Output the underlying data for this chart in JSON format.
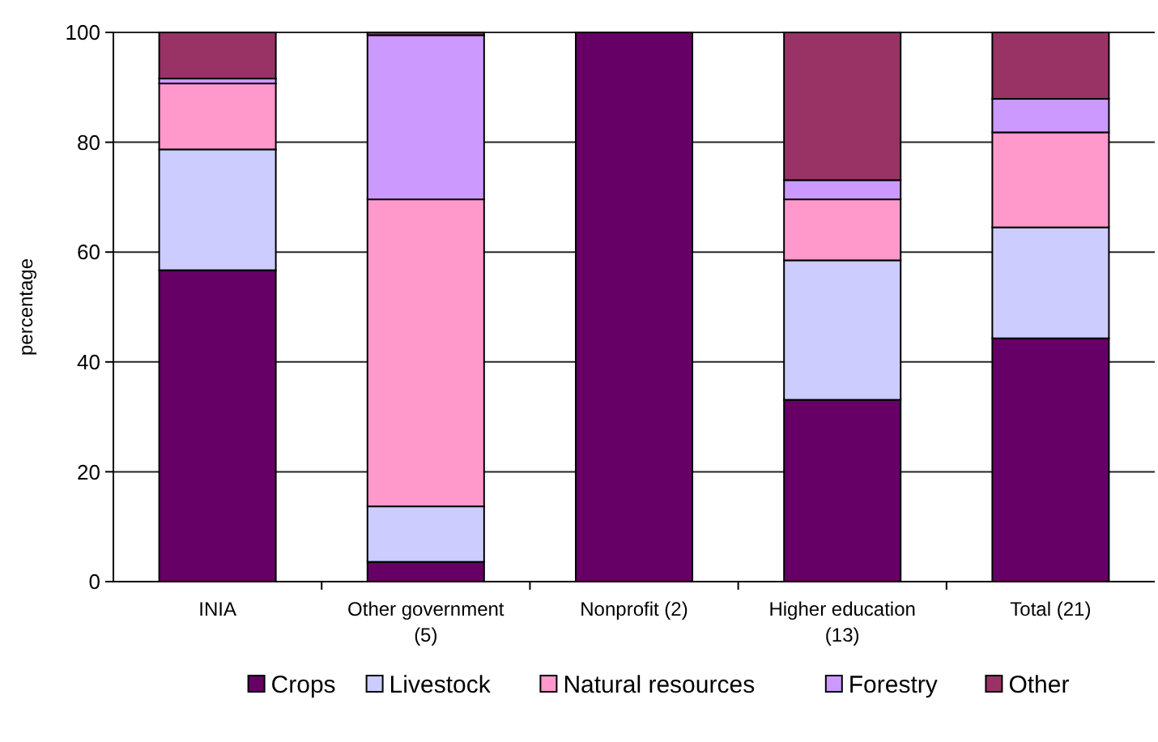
{
  "chart_data": {
    "type": "bar",
    "stacked": true,
    "ylabel": "percentage",
    "categories": [
      "INIA",
      "Other government (5)",
      "Nonprofit (2)",
      "Higher education (13)",
      "Total (21)"
    ],
    "series": [
      {
        "name": "Crops",
        "color": "#660066",
        "values": [
          56.7,
          3.6,
          100,
          33.1,
          44.3
        ]
      },
      {
        "name": "Livestock",
        "color": "#ccccff",
        "values": [
          22,
          10.1,
          0,
          25.4,
          20.2
        ]
      },
      {
        "name": "Natural resources",
        "color": "#ff99cc",
        "values": [
          12,
          55.9,
          0,
          11.1,
          17.3
        ]
      },
      {
        "name": "Forestry",
        "color": "#cc99ff",
        "values": [
          0.9,
          29.9,
          0,
          3.5,
          6.1
        ]
      },
      {
        "name": "Other",
        "color": "#993366",
        "values": [
          8.4,
          0.5,
          0,
          26.9,
          12.1
        ]
      }
    ],
    "ylim": [
      0,
      100
    ],
    "yticks": [
      0,
      20,
      40,
      60,
      80,
      100
    ],
    "grid": "y",
    "legend": "bottom"
  }
}
